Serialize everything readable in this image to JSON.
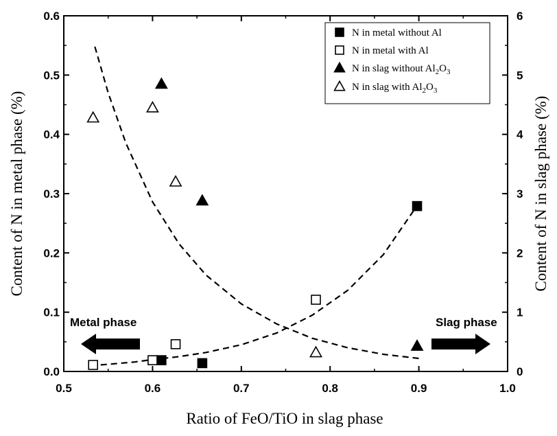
{
  "chart_data": {
    "type": "scatter",
    "title": "",
    "xlabel": "Ratio of FeO/TiO in slag phase",
    "ylabel_left": "Content of N in metal phase (%)",
    "ylabel_right": "Content of N in slag phase (%)",
    "xlim": [
      0.5,
      1.0
    ],
    "ylim_left": [
      0.0,
      0.6
    ],
    "ylim_right": [
      0,
      6
    ],
    "x_ticks": [
      "0.5",
      "0.6",
      "0.7",
      "0.8",
      "0.9",
      "1.0"
    ],
    "y_left_ticks": [
      "0.0",
      "0.1",
      "0.2",
      "0.3",
      "0.4",
      "0.5",
      "0.6"
    ],
    "y_right_ticks": [
      "0",
      "1",
      "2",
      "3",
      "4",
      "5",
      "6"
    ],
    "grid": false,
    "legend_position": "top-right",
    "series": [
      {
        "name": "N in metal without Al",
        "axis": "left",
        "marker": "square-filled",
        "x": [
          0.61,
          0.656,
          0.898
        ],
        "y": [
          0.019,
          0.014,
          0.279
        ]
      },
      {
        "name": "N in metal with Al",
        "axis": "left",
        "marker": "square-open",
        "x": [
          0.533,
          0.6,
          0.626,
          0.784
        ],
        "y": [
          0.011,
          0.019,
          0.046,
          0.121
        ]
      },
      {
        "name": "N in slag without Al2O3",
        "axis": "right",
        "marker": "triangle-filled",
        "x": [
          0.61,
          0.656,
          0.898
        ],
        "y": [
          4.85,
          2.88,
          0.43
        ]
      },
      {
        "name": "N in slag with Al2O3",
        "axis": "right",
        "marker": "triangle-open",
        "x": [
          0.533,
          0.6,
          0.626,
          0.784
        ],
        "y": [
          4.28,
          4.45,
          3.2,
          0.32
        ]
      }
    ],
    "legend_entries": [
      {
        "base": "N in metal without Al",
        "sub": "",
        "tail": ""
      },
      {
        "base": "N in metal with Al",
        "sub": "",
        "tail": ""
      },
      {
        "base": "N in slag without Al",
        "sub": "2",
        "tail": "O",
        "sub2": "3"
      },
      {
        "base": "N in slag with Al",
        "sub": "2",
        "tail": "O",
        "sub2": "3"
      }
    ],
    "fit_curves": [
      {
        "axis": "left",
        "style": "dashed",
        "x": [
          0.53,
          0.55,
          0.58,
          0.6,
          0.63,
          0.66,
          0.7,
          0.74,
          0.78,
          0.82,
          0.86,
          0.9
        ],
        "y": [
          0.01,
          0.012,
          0.016,
          0.02,
          0.025,
          0.032,
          0.045,
          0.065,
          0.095,
          0.137,
          0.197,
          0.284
        ]
      },
      {
        "axis": "right",
        "style": "dashed",
        "x": [
          0.535,
          0.55,
          0.57,
          0.6,
          0.63,
          0.66,
          0.7,
          0.74,
          0.78,
          0.82,
          0.86,
          0.9
        ],
        "y": [
          5.48,
          4.7,
          3.85,
          2.86,
          2.15,
          1.63,
          1.14,
          0.8,
          0.56,
          0.4,
          0.29,
          0.22
        ]
      }
    ],
    "annotations": [
      {
        "text": "Metal phase",
        "arrow": "left"
      },
      {
        "text": "Slag phase",
        "arrow": "right"
      }
    ]
  }
}
